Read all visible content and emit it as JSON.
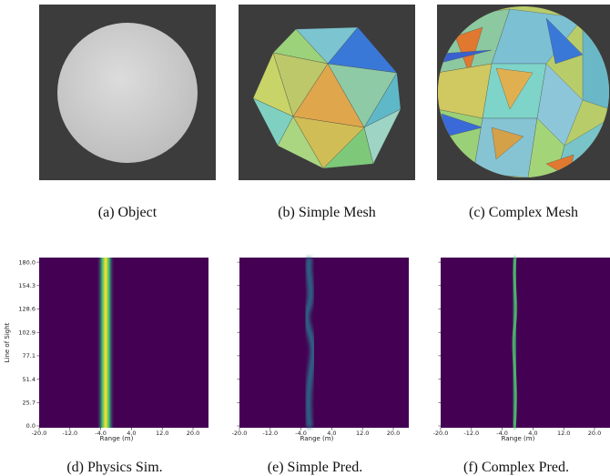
{
  "figure": {
    "renders": [
      {
        "caption": "(a) Object"
      },
      {
        "caption": "(b) Simple Mesh"
      },
      {
        "caption": "(c) Complex Mesh"
      }
    ],
    "plots": [
      {
        "caption": "(d) Physics Sim.",
        "xlabel": "Range (m)",
        "ylabel": "Line of Sight",
        "xticks": [
          "-20.0",
          "-12.0",
          "-4.0",
          "4.0",
          "12.0",
          "20.0"
        ],
        "yticks": [
          "0.0",
          "25.7",
          "51.4",
          "77.1",
          "102.9",
          "128.6",
          "154.3",
          "180.0"
        ]
      },
      {
        "caption": "(e) Simple Pred.",
        "xlabel": "Range (m)",
        "xticks": [
          "-20.0",
          "-12.0",
          "-4.0",
          "4.0",
          "12.0",
          "20.0"
        ]
      },
      {
        "caption": "(f) Complex Pred.",
        "xlabel": "Range (m)",
        "xticks": [
          "-20.0",
          "-12.0",
          "-4.0",
          "4.0",
          "12.0",
          "20.0"
        ]
      }
    ]
  }
}
